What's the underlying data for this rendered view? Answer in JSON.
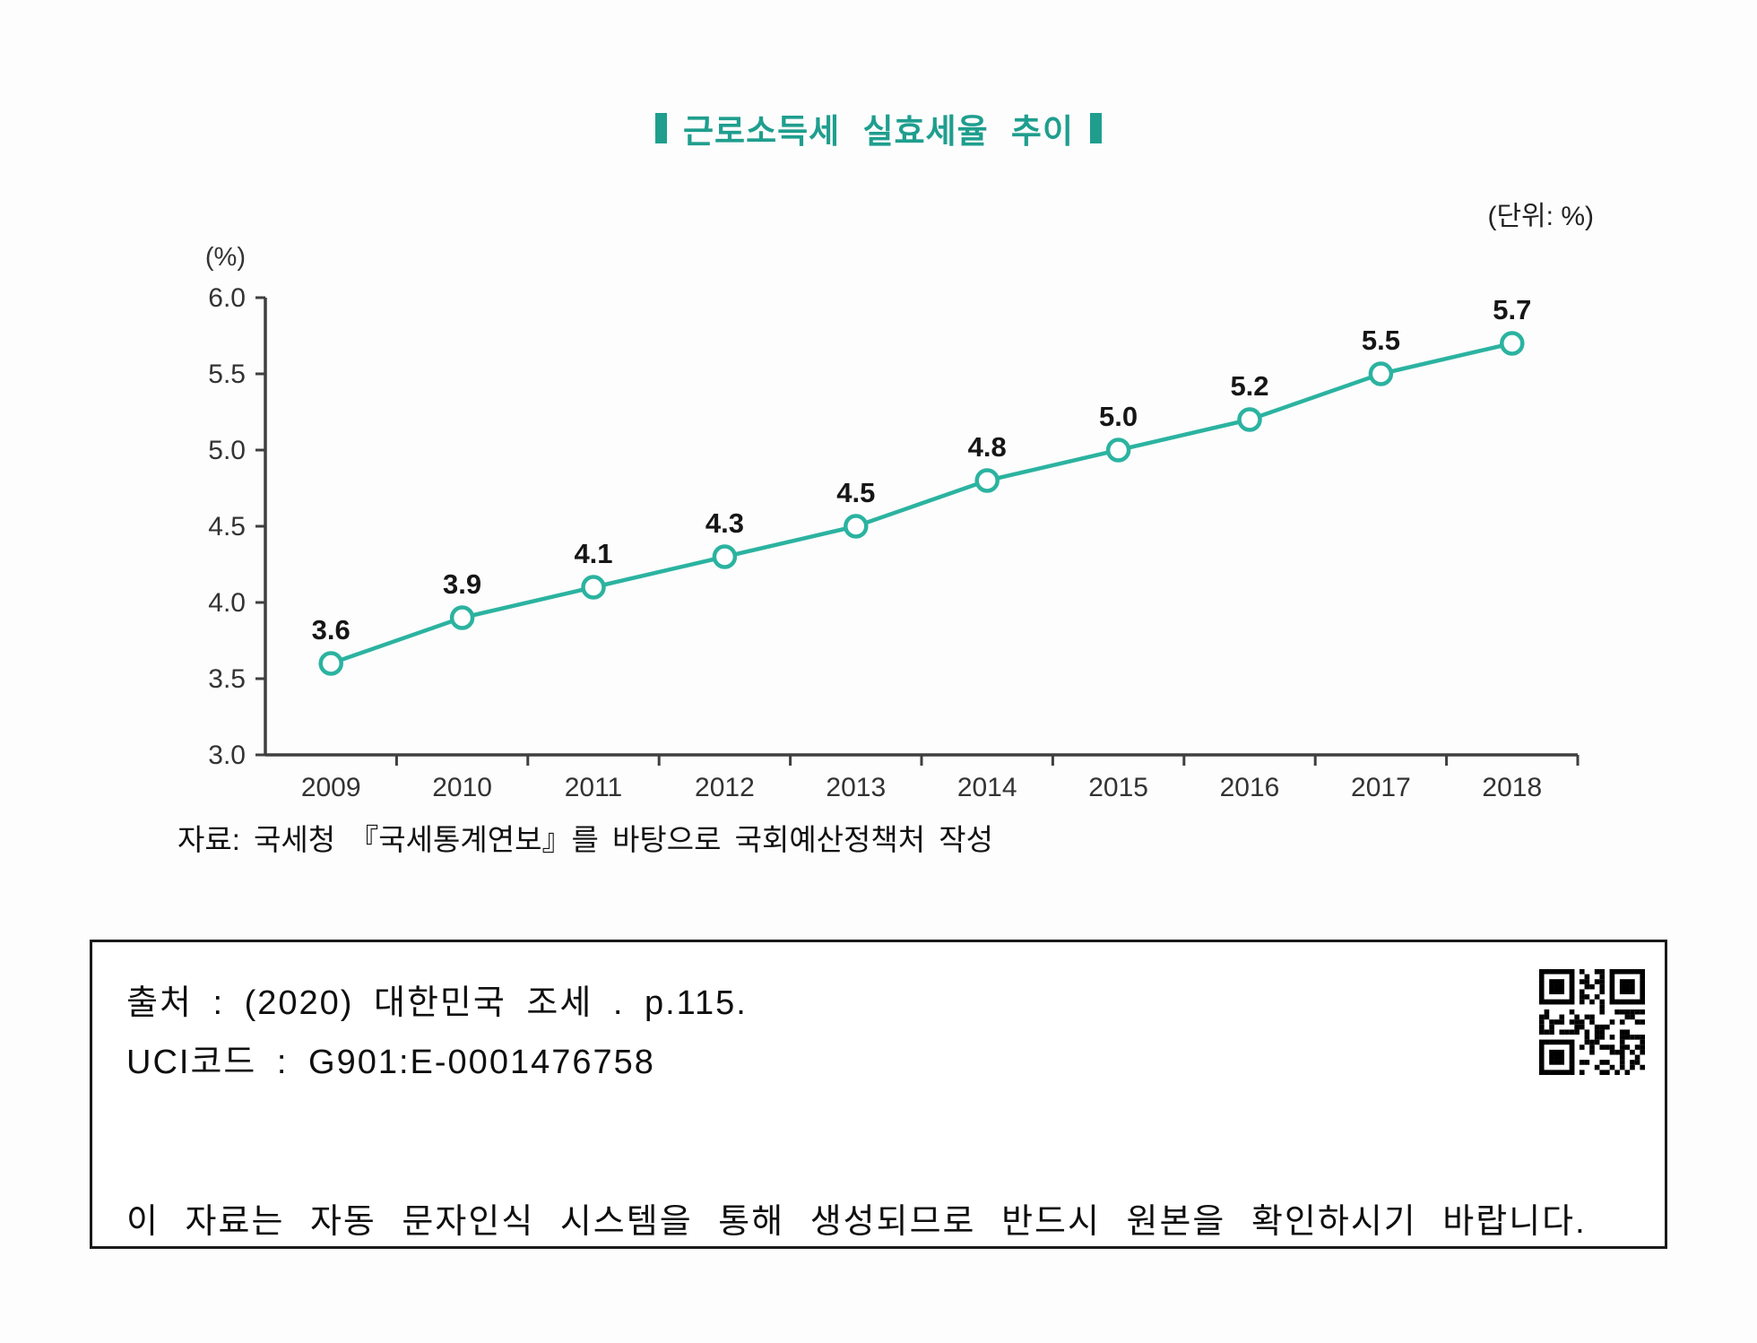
{
  "page": {
    "title": "근로소득세 실효세율 추이",
    "unit_label": "(단위: %)",
    "source_note": "자료: 국세청 『국세통계연보』를 바탕으로 국회예산정책처 작성"
  },
  "chart_data": {
    "type": "line",
    "title": "근로소득세 실효세율 추이",
    "categories": [
      "2009",
      "2010",
      "2011",
      "2012",
      "2013",
      "2014",
      "2015",
      "2016",
      "2017",
      "2018"
    ],
    "series": [
      {
        "name": "근로소득세 실효세율",
        "values": [
          3.6,
          3.9,
          4.1,
          4.3,
          4.5,
          4.8,
          5.0,
          5.2,
          5.5,
          5.7
        ]
      }
    ],
    "ylabel": "(%)",
    "unit_note": "(단위: %)",
    "ylim": [
      3.0,
      6.0
    ],
    "ytick_step": 0.5,
    "grid": false,
    "legend_position": "none",
    "marker": "circle",
    "data_labels": true,
    "line_color": "#2bb3a0"
  },
  "citation_box": {
    "source_line": "출처 : (2020) 대한민국 조세 . p.115.",
    "uci_line": "UCI코드 : G901:E-0001476758",
    "notice_line": "이 자료는 자동 문자인식 시스템을 통해 생성되므로 반드시 원본을 확인하시기 바랍니다.",
    "qr_icon": "qr-code"
  },
  "colors": {
    "accent_teal": "#1f9e8e",
    "line_teal": "#2bb3a0",
    "axis_gray": "#3f3f3f",
    "text_black": "#141414"
  }
}
